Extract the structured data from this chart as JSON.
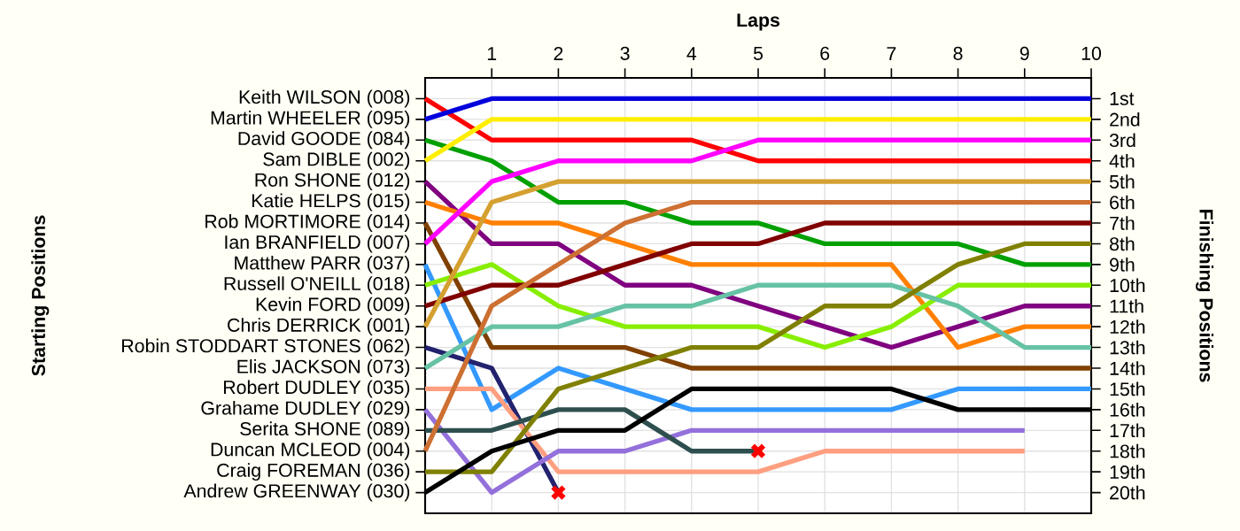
{
  "chart_data": {
    "type": "line",
    "xlabel": "Laps",
    "ylabel": "Finishing Positions",
    "grid": true,
    "xlim": [
      0,
      10
    ],
    "xticks": [
      1,
      2,
      3,
      4,
      5,
      6,
      7,
      8,
      9,
      10
    ],
    "ylim": [
      21,
      0
    ],
    "yticks": [
      {
        "value": 1,
        "label": "1st"
      },
      {
        "value": 2,
        "label": "2nd"
      },
      {
        "value": 3,
        "label": "3rd"
      },
      {
        "value": 4,
        "label": "4th"
      },
      {
        "value": 5,
        "label": "5th"
      },
      {
        "value": 6,
        "label": "6th"
      },
      {
        "value": 7,
        "label": "7th"
      },
      {
        "value": 8,
        "label": "8th"
      },
      {
        "value": 9,
        "label": "9th"
      },
      {
        "value": 10,
        "label": "10th"
      },
      {
        "value": 11,
        "label": "11th"
      },
      {
        "value": 12,
        "label": "12th"
      },
      {
        "value": 13,
        "label": "13th"
      },
      {
        "value": 14,
        "label": "14th"
      },
      {
        "value": 15,
        "label": "15th"
      },
      {
        "value": 16,
        "label": "16th"
      },
      {
        "value": 17,
        "label": "17th"
      },
      {
        "value": 18,
        "label": "18th"
      },
      {
        "value": 19,
        "label": "19th"
      },
      {
        "value": 20,
        "label": "20th"
      }
    ],
    "annotations": [
      "Keith WILSON (008)",
      "Martin WHEELER (095)",
      "David GOODE (084)",
      "Sam DIBLE (002)",
      "Ron SHONE (012)",
      "Katie HELPS (015)",
      "Rob MORTIMORE (014)",
      "Ian BRANFIELD (007)",
      "Matthew PARR (037)",
      "Russell O'NEILL (018)",
      "Kevin FORD (009)",
      "Chris DERRICK (001)",
      "Robin STODDART STONES (062)",
      "Elis JACKSON (073)",
      "Robert DUDLEY (035)",
      "Grahame DUDLEY (029)",
      "Serita SHONE (089)",
      "Duncan MCLEOD (004)",
      "Craig FOREMAN (036)",
      "Andrew GREENWAY (030)",
      "Starting Positions"
    ],
    "series": [
      {
        "color": "#ff0000",
        "x": [
          0,
          1,
          2,
          3,
          4,
          5,
          6,
          7,
          8,
          9,
          10
        ],
        "values": [
          1,
          3,
          3,
          3,
          3,
          4,
          4,
          4,
          4,
          4,
          4
        ]
      },
      {
        "color": "#0000dd",
        "x": [
          0,
          1,
          2,
          3,
          4,
          5,
          6,
          7,
          8,
          9,
          10
        ],
        "values": [
          2,
          1,
          1,
          1,
          1,
          1,
          1,
          1,
          1,
          1,
          1
        ]
      },
      {
        "color": "#00a000",
        "x": [
          0,
          1,
          2,
          3,
          4,
          5,
          6,
          7,
          8,
          9,
          10
        ],
        "values": [
          3,
          4,
          6,
          6,
          7,
          7,
          8,
          8,
          8,
          9,
          9
        ]
      },
      {
        "color": "#ffee00",
        "x": [
          0,
          1,
          2,
          3,
          4,
          5,
          6,
          7,
          8,
          9,
          10
        ],
        "values": [
          4,
          2,
          2,
          2,
          2,
          2,
          2,
          2,
          2,
          2,
          2
        ]
      },
      {
        "color": "#800080",
        "x": [
          0,
          1,
          2,
          3,
          4,
          5,
          6,
          7,
          8,
          9,
          10
        ],
        "values": [
          5,
          8,
          8,
          10,
          10,
          11,
          12,
          13,
          12,
          11,
          11
        ]
      },
      {
        "color": "#ff8000",
        "x": [
          0,
          1,
          2,
          3,
          4,
          5,
          6,
          7,
          8,
          9,
          10
        ],
        "values": [
          6,
          7,
          7,
          8,
          9,
          9,
          9,
          9,
          13,
          12,
          12
        ]
      },
      {
        "color": "#804000",
        "x": [
          0,
          1,
          2,
          3,
          4,
          5,
          6,
          7,
          8,
          9,
          10
        ],
        "values": [
          7,
          13,
          13,
          13,
          14,
          14,
          14,
          14,
          14,
          14,
          14
        ]
      },
      {
        "color": "#ff00ff",
        "x": [
          0,
          1,
          2,
          3,
          4,
          5,
          6,
          7,
          8,
          9,
          10
        ],
        "values": [
          8,
          5,
          4,
          4,
          4,
          3,
          3,
          3,
          3,
          3,
          3
        ]
      },
      {
        "color": "#3399ff",
        "x": [
          0,
          1,
          2,
          3,
          4,
          5,
          6,
          7,
          8,
          9,
          10
        ],
        "values": [
          9,
          16,
          14,
          15,
          16,
          16,
          16,
          16,
          15,
          15,
          15
        ]
      },
      {
        "color": "#88ee00",
        "x": [
          0,
          1,
          2,
          3,
          4,
          5,
          6,
          7,
          8,
          9,
          10
        ],
        "values": [
          10,
          9,
          11,
          12,
          12,
          12,
          13,
          12,
          10,
          10,
          10
        ]
      },
      {
        "color": "#800000",
        "x": [
          0,
          1,
          2,
          3,
          4,
          5,
          6,
          7,
          8,
          9,
          10
        ],
        "values": [
          11,
          10,
          10,
          9,
          8,
          8,
          7,
          7,
          7,
          7,
          7
        ]
      },
      {
        "color": "#d4a030",
        "x": [
          0,
          1,
          2,
          3,
          4,
          5,
          6,
          7,
          8,
          9,
          10
        ],
        "values": [
          12,
          6,
          5,
          5,
          5,
          5,
          5,
          5,
          5,
          5,
          5
        ]
      },
      {
        "color": "#22226e",
        "x": [
          0,
          1,
          2
        ],
        "values": [
          13,
          14,
          20
        ]
      },
      {
        "color": "#66c2a5",
        "x": [
          0,
          1,
          2,
          3,
          4,
          5,
          6,
          7,
          8,
          9,
          10
        ],
        "values": [
          14,
          12,
          12,
          11,
          11,
          10,
          10,
          10,
          11,
          13,
          13
        ]
      },
      {
        "color": "#ff9f80",
        "x": [
          0,
          1,
          2,
          3,
          4,
          5,
          6,
          7,
          8,
          9
        ],
        "values": [
          15,
          15,
          19,
          19,
          19,
          19,
          18,
          18,
          18,
          18
        ]
      },
      {
        "color": "#9370db",
        "x": [
          0,
          1,
          2,
          3,
          4,
          5,
          6,
          7,
          8,
          9
        ],
        "values": [
          16,
          20,
          18,
          18,
          17,
          17,
          17,
          17,
          17,
          17
        ]
      },
      {
        "color": "#2f4f4f",
        "x": [
          0,
          1,
          2,
          3,
          4,
          5
        ],
        "values": [
          17,
          17,
          16,
          16,
          18,
          18
        ]
      },
      {
        "color": "#cd7032",
        "x": [
          0,
          1,
          2,
          3,
          4,
          5,
          6,
          7,
          8,
          9,
          10
        ],
        "values": [
          18,
          11,
          9,
          7,
          6,
          6,
          6,
          6,
          6,
          6,
          6
        ]
      },
      {
        "color": "#808000",
        "x": [
          0,
          1,
          2,
          3,
          4,
          5,
          6,
          7,
          8,
          9,
          10
        ],
        "values": [
          19,
          19,
          15,
          14,
          13,
          13,
          11,
          11,
          9,
          8,
          8
        ]
      },
      {
        "color": "#000000",
        "x": [
          0,
          1,
          2,
          3,
          4,
          5,
          6,
          7,
          8,
          9,
          10
        ],
        "values": [
          20,
          18,
          17,
          17,
          15,
          15,
          15,
          15,
          16,
          16,
          16
        ]
      },
      {
        "type": "scatter",
        "marker": "cross",
        "color": "#ff0000",
        "x": [
          2,
          5
        ],
        "values": [
          20,
          18
        ]
      }
    ]
  }
}
